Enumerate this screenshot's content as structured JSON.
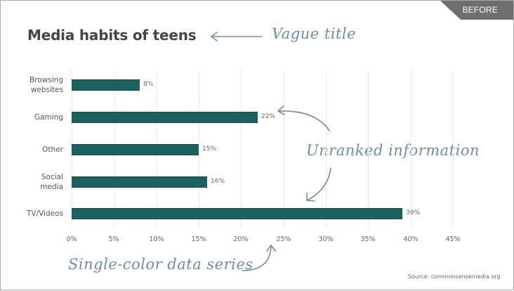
{
  "badge": {
    "label": "BEFORE"
  },
  "chart_data": {
    "type": "bar",
    "orientation": "horizontal",
    "title": "Media habits of teens",
    "categories": [
      "Browsing websites",
      "Gaming",
      "Other",
      "Social media",
      "TV/Videos"
    ],
    "values": [
      8,
      22,
      15,
      16,
      39
    ],
    "value_labels": [
      "8%",
      "22%",
      "15%",
      "16%",
      "39%"
    ],
    "xlabel": "",
    "ylabel": "",
    "xlim": [
      0,
      45
    ],
    "x_ticks": [
      "0%",
      "5%",
      "10%",
      "15%",
      "20%",
      "25%",
      "30%",
      "35%",
      "40%",
      "45%"
    ],
    "grid": true,
    "legend": null,
    "bar_color": "#1d6060",
    "source": "Source: commonsensemedia.org"
  },
  "annotations": {
    "title_note": "Vague title",
    "rank_note": "Unranked information",
    "color_note": "Single-color data series",
    "annotation_color": "#6b8f9c"
  },
  "category_lines": [
    [
      "Browsing",
      "websites"
    ],
    [
      "Gaming"
    ],
    [
      "Other"
    ],
    [
      "Social",
      "media"
    ],
    [
      "TV/Videos"
    ]
  ]
}
